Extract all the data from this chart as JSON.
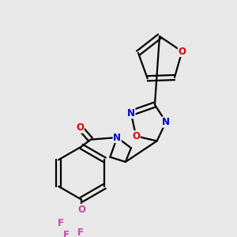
{
  "background_color": "#e8e8e8",
  "bond_color": "#000000",
  "atom_colors": {
    "N": "#0000cc",
    "O": "#dd0000",
    "O_pink": "#cc44aa",
    "F": "#cc44aa",
    "C": "#000000"
  },
  "line_width": 1.6,
  "font_size_atom": 8.5
}
